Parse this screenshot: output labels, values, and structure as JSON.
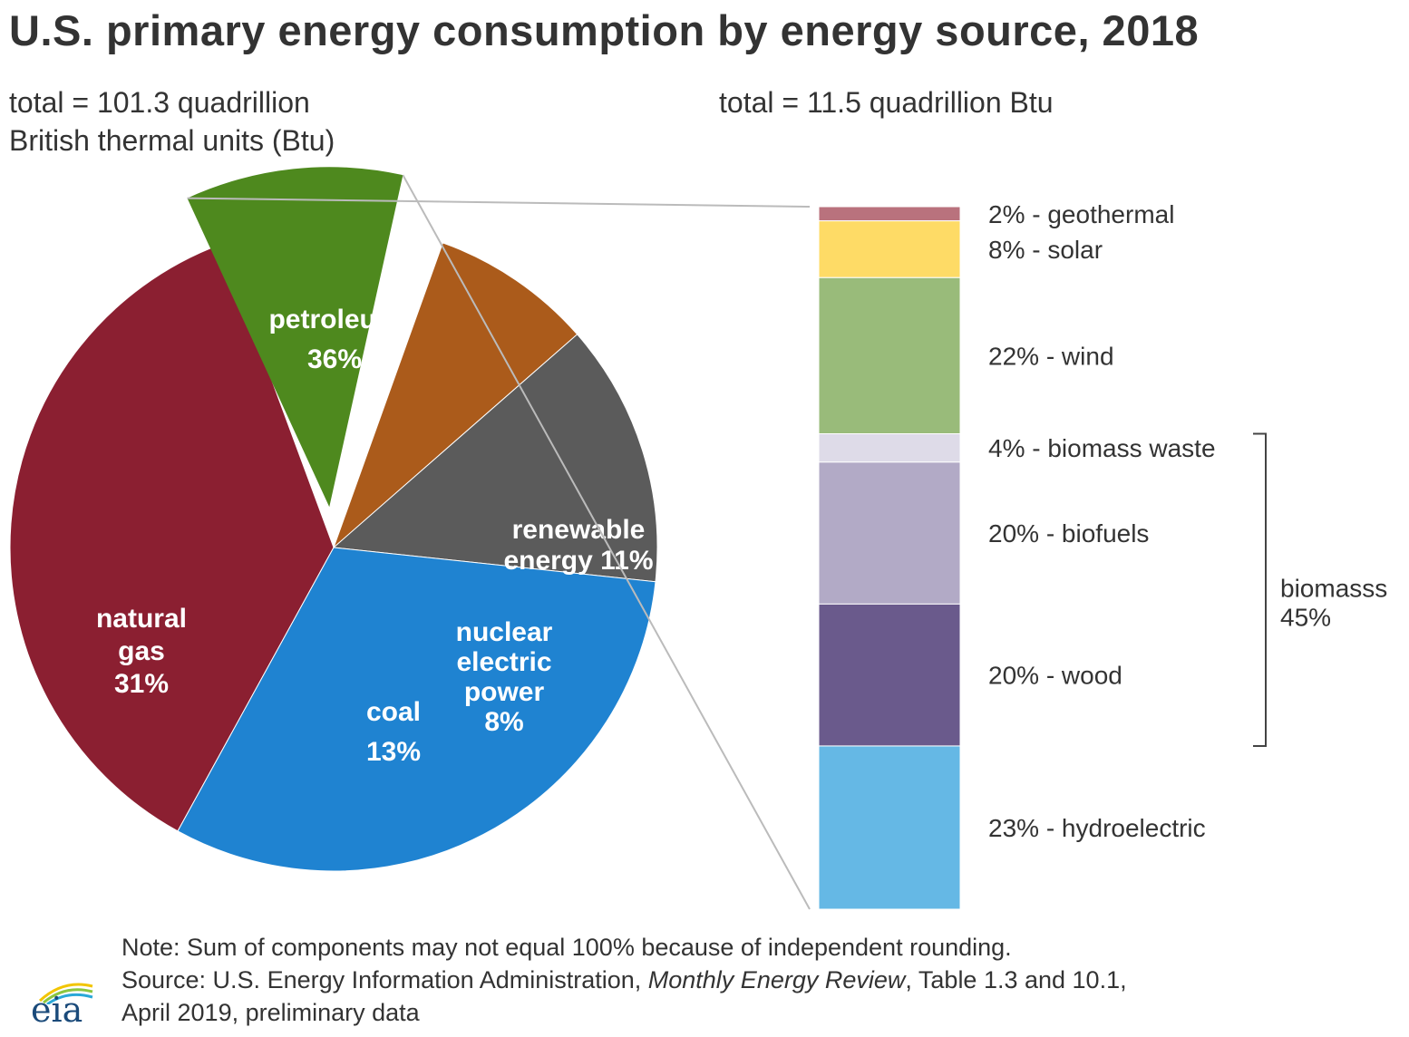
{
  "header": {
    "title": "U.S. primary energy consumption by energy source, 2018",
    "total_left_line1": "total = 101.3 quadrillion",
    "total_left_line2": "British thermal units (Btu)",
    "total_right": "total = 11.5 quadrillion Btu"
  },
  "chart_data": [
    {
      "type": "pie",
      "title": "U.S. primary energy consumption by energy source, 2018",
      "total_label": "total = 101.3 quadrillion British thermal units (Btu)",
      "slices": [
        {
          "name": "petroleum",
          "label_lines": [
            "petroleum",
            "36%"
          ],
          "value": 36,
          "color": "#8b1f31"
        },
        {
          "name": "renewable energy",
          "label_lines": [
            "renewable",
            "energy 11%"
          ],
          "value": 11,
          "color": "#4e891e",
          "exploded": true
        },
        {
          "name": "nuclear electric power",
          "label_lines": [
            "nuclear",
            "electric",
            "power",
            "8%"
          ],
          "value": 8,
          "color": "#ab5b1b"
        },
        {
          "name": "coal",
          "label_lines": [
            "coal",
            "13%"
          ],
          "value": 13,
          "color": "#5b5b5b"
        },
        {
          "name": "natural gas",
          "label_lines": [
            "natural",
            "gas",
            "31%"
          ],
          "value": 31,
          "color": "#1f83d1"
        }
      ]
    },
    {
      "type": "bar",
      "stacked": true,
      "title": "renewable energy breakdown",
      "total_label": "total = 11.5 quadrillion Btu",
      "segments": [
        {
          "name": "geothermal",
          "label": "2% - geothermal",
          "value": 2,
          "color": "#b9727d"
        },
        {
          "name": "solar",
          "label": "8% - solar",
          "value": 8,
          "color": "#fedb66"
        },
        {
          "name": "wind",
          "label": "22% - wind",
          "value": 22,
          "color": "#99bb7a"
        },
        {
          "name": "biomass waste",
          "label": "4% - biomass waste",
          "value": 4,
          "color": "#dedbe8"
        },
        {
          "name": "biofuels",
          "label": "20% - biofuels",
          "value": 20,
          "color": "#b2aac6"
        },
        {
          "name": "wood",
          "label": "20% - wood",
          "value": 20,
          "color": "#6a5a8c"
        },
        {
          "name": "hydroelectric",
          "label": "23% - hydroelectric",
          "value": 23,
          "color": "#65b8e5"
        }
      ],
      "bracket": {
        "label_line1": "biomasss",
        "label_line2": "45%",
        "covers": [
          "biomass waste",
          "biofuels",
          "wood"
        ]
      }
    }
  ],
  "footer": {
    "note": "Note: Sum of components may not equal 100% because of independent rounding.",
    "source_prefix": "Source: U.S. Energy Information Administration, ",
    "source_italic": "Monthly Energy Review",
    "source_suffix": ", Table 1.3 and 10.1,",
    "source_line2": "April 2019, preliminary data"
  },
  "logo": {
    "text": "eia",
    "arc_colors": [
      "#f2c500",
      "#8cc63f",
      "#2aa8d8"
    ]
  }
}
